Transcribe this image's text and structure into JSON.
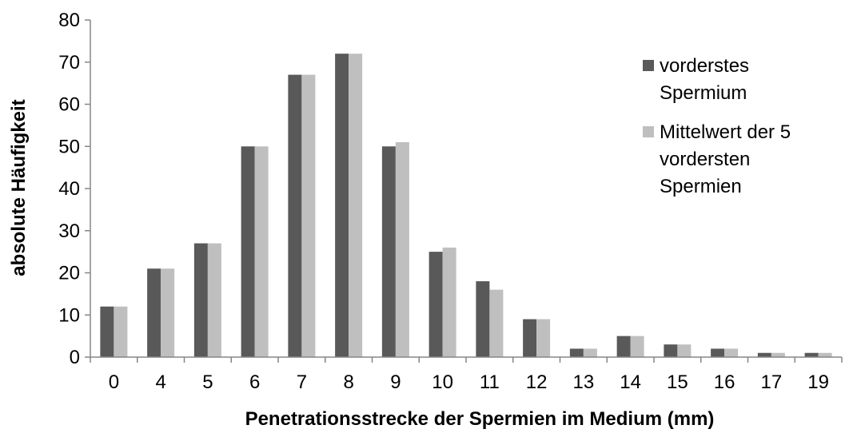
{
  "chart_data": {
    "type": "bar",
    "categories": [
      "0",
      "4",
      "5",
      "6",
      "7",
      "8",
      "9",
      "10",
      "11",
      "12",
      "13",
      "14",
      "15",
      "16",
      "17",
      "19"
    ],
    "series": [
      {
        "name": "vorderstes Spermium",
        "legend_lines": [
          "vorderstes",
          "Spermium"
        ],
        "color": "#595959",
        "values": [
          12,
          21,
          27,
          50,
          67,
          72,
          50,
          25,
          18,
          9,
          2,
          5,
          3,
          2,
          1,
          1
        ]
      },
      {
        "name": "Mittelwert der 5 vordersten Spermien",
        "legend_lines": [
          "Mittelwert der 5",
          "vordersten",
          "Spermien"
        ],
        "color": "#bfbfbf",
        "values": [
          12,
          21,
          27,
          50,
          67,
          72,
          51,
          26,
          16,
          9,
          2,
          5,
          3,
          2,
          1,
          1
        ]
      }
    ],
    "xlabel": "Penetrationsstrecke der Spermien im Medium (mm)",
    "ylabel": "absolute Häufigkeit",
    "ylim": [
      0,
      80
    ],
    "yticks": [
      "0",
      "10",
      "20",
      "30",
      "40",
      "50",
      "60",
      "70",
      "80"
    ],
    "grid": false,
    "legend_position": "right"
  }
}
